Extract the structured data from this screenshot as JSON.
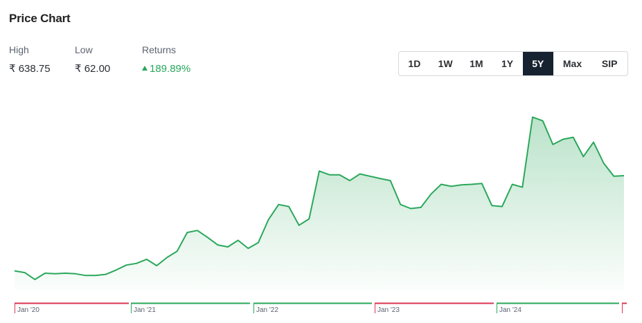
{
  "header": {
    "title": "Price Chart"
  },
  "stats": {
    "high_label": "High",
    "high_value": "₹ 638.75",
    "low_label": "Low",
    "low_value": "₹ 62.00",
    "returns_label": "Returns",
    "returns_value": "189.89%",
    "returns_color": "#27a65b"
  },
  "range_tabs": {
    "items": [
      "1D",
      "1W",
      "1M",
      "1Y",
      "5Y",
      "Max",
      "SIP"
    ],
    "selected": "5Y"
  },
  "chart_data": {
    "type": "area",
    "title": "",
    "xlabel": "",
    "ylabel": "",
    "line_color": "#2aa75a",
    "ylim": [
      0,
      700
    ],
    "x_ticks": [
      "Jan '20",
      "Jan '21",
      "Jan '22",
      "Jan '23",
      "Jan '24"
    ],
    "year_segments": [
      {
        "label": "Jan '20",
        "color": "#d9344f"
      },
      {
        "label": "Jan '21",
        "color": "#2aa75a"
      },
      {
        "label": "Jan '22",
        "color": "#2aa75a"
      },
      {
        "label": "Jan '23",
        "color": "#d9344f"
      },
      {
        "label": "Jan '24",
        "color": "#2aa75a"
      }
    ],
    "series": [
      {
        "x": [
          "2019-12",
          "2020-01",
          "2020-02",
          "2020-03",
          "2020-04",
          "2020-05",
          "2020-06",
          "2020-07",
          "2020-08",
          "2020-09",
          "2020-10",
          "2020-11",
          "2020-12",
          "2021-01",
          "2021-02",
          "2021-03",
          "2021-04",
          "2021-05",
          "2021-06",
          "2021-07",
          "2021-08",
          "2021-09",
          "2021-10",
          "2021-11",
          "2021-12",
          "2022-01",
          "2022-02",
          "2022-03",
          "2022-04",
          "2022-05",
          "2022-06",
          "2022-07",
          "2022-08",
          "2022-09",
          "2022-10",
          "2022-11",
          "2022-12",
          "2023-01",
          "2023-02",
          "2023-03",
          "2023-04",
          "2023-05",
          "2023-06",
          "2023-07",
          "2023-08",
          "2023-09",
          "2023-10",
          "2023-11",
          "2023-12",
          "2024-01",
          "2024-02",
          "2024-03",
          "2024-04",
          "2024-05",
          "2024-06",
          "2024-07",
          "2024-08",
          "2024-09",
          "2024-10",
          "2024-11",
          "2024-12"
        ],
        "values": [
          92,
          86,
          62,
          84,
          82,
          84,
          82,
          76,
          76,
          80,
          95,
          112,
          118,
          132,
          110,
          138,
          160,
          225,
          232,
          208,
          182,
          175,
          198,
          170,
          190,
          270,
          322,
          315,
          250,
          272,
          438,
          425,
          425,
          405,
          428,
          420,
          412,
          405,
          322,
          308,
          312,
          358,
          392,
          385,
          390,
          392,
          395,
          318,
          315,
          392,
          382,
          625,
          612,
          530,
          548,
          555,
          488,
          538,
          465,
          420,
          422
        ]
      }
    ]
  }
}
